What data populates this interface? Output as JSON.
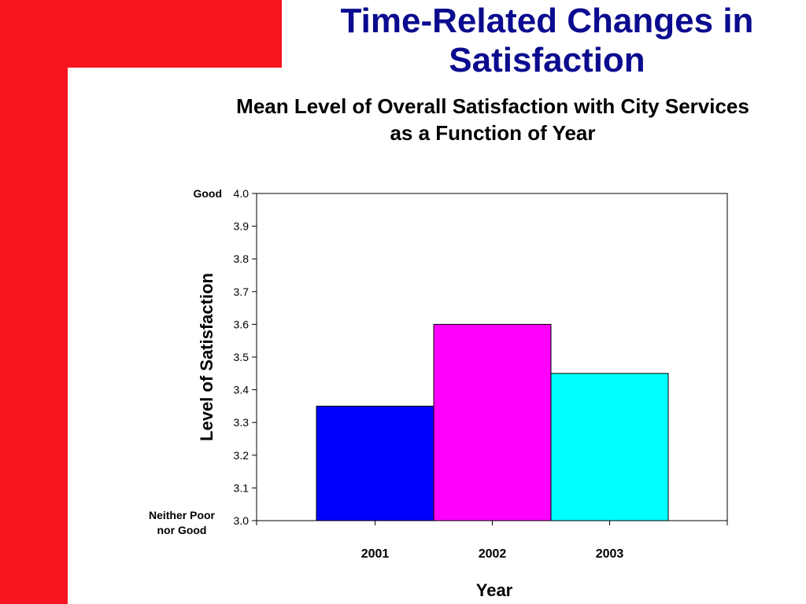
{
  "slide": {
    "title": "Time-Related Changes in Satisfaction"
  },
  "colors": {
    "accent_red": "#f7141e",
    "title_blue": "#0b0b8f"
  },
  "chart_data": {
    "type": "bar",
    "title": "Mean Level of Overall Satisfaction with City Services as a Function of Year",
    "xlabel": "Year",
    "ylabel": "Level of Satisfaction",
    "categories": [
      "2001",
      "2002",
      "2003"
    ],
    "values": [
      3.35,
      3.6,
      3.45
    ],
    "bar_colors": [
      "#0000ff",
      "#ff00ff",
      "#00ffff"
    ],
    "ylim": [
      3.0,
      4.0
    ],
    "yticks": [
      "4.0",
      "3.9",
      "3.8",
      "3.7",
      "3.6",
      "3.5",
      "3.4",
      "3.3",
      "3.2",
      "3.1",
      "3.0"
    ],
    "y_anchor_labels": {
      "top": "Good",
      "bottom_line1": "Neither Poor",
      "bottom_line2": "nor Good"
    },
    "grid": false,
    "legend": "none"
  }
}
